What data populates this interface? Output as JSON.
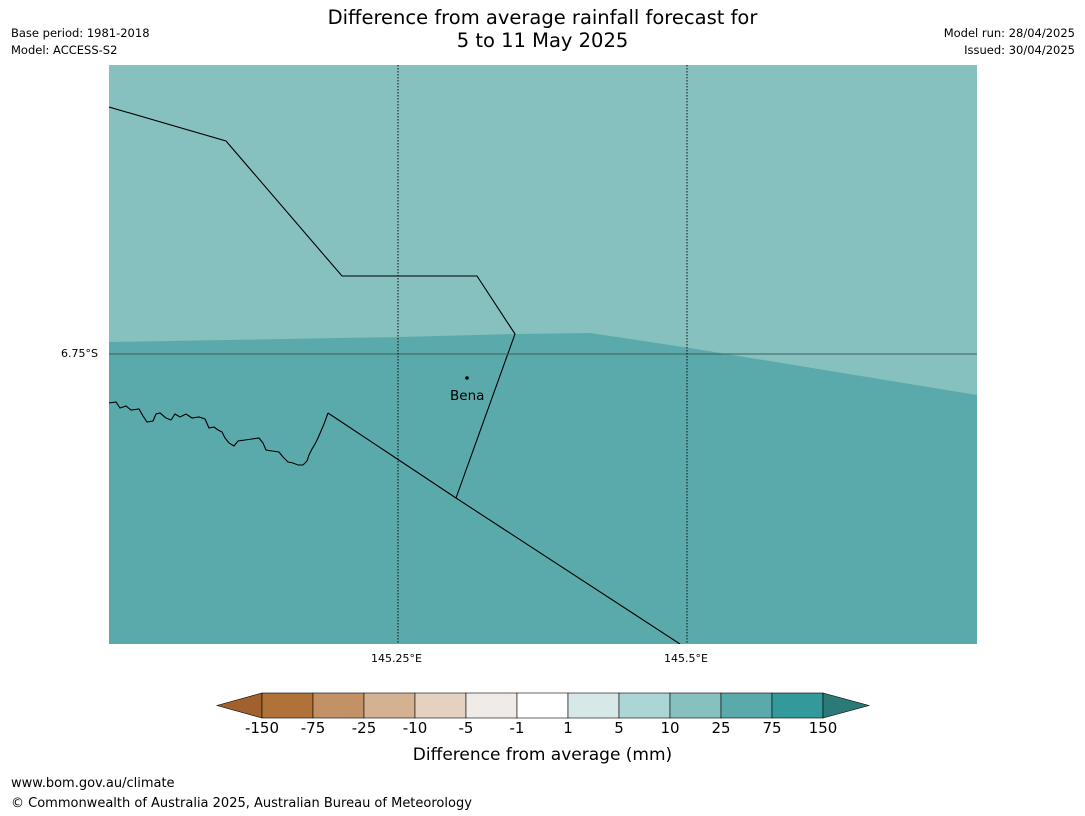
{
  "title_line1": "Difference from average rainfall forecast for",
  "title_line2": "5 to 11 May 2025",
  "base_period": "Base period: 1981-2018",
  "model": "Model: ACCESS-S2",
  "model_run": "Model run: 28/04/2025",
  "issued": "Issued: 30/04/2025",
  "map": {
    "lat_label": "6.75°S",
    "lon_labels": [
      "145.25°E",
      "145.5°E"
    ],
    "place_name": "Bena",
    "region_colors": {
      "upper": "#86c1bf",
      "lower": "#5baaab"
    }
  },
  "colorbar": {
    "title": "Difference from average (mm)",
    "labels": [
      "-150",
      "-75",
      "-25",
      "-10",
      "-5",
      "-1",
      "1",
      "5",
      "10",
      "25",
      "75",
      "150"
    ],
    "colors": [
      "#a0612e",
      "#b07239",
      "#c29166",
      "#d4b191",
      "#e4d1bf",
      "#f0ebe7",
      "#ffffff",
      "#d6e8e8",
      "#acd5d5",
      "#86c1bf",
      "#5baaab",
      "#33999a",
      "#2b7a78"
    ]
  },
  "footer_url": "www.bom.gov.au/climate",
  "footer_copyright": "© Commonwealth of Australia 2025, Australian Bureau of Meteorology"
}
